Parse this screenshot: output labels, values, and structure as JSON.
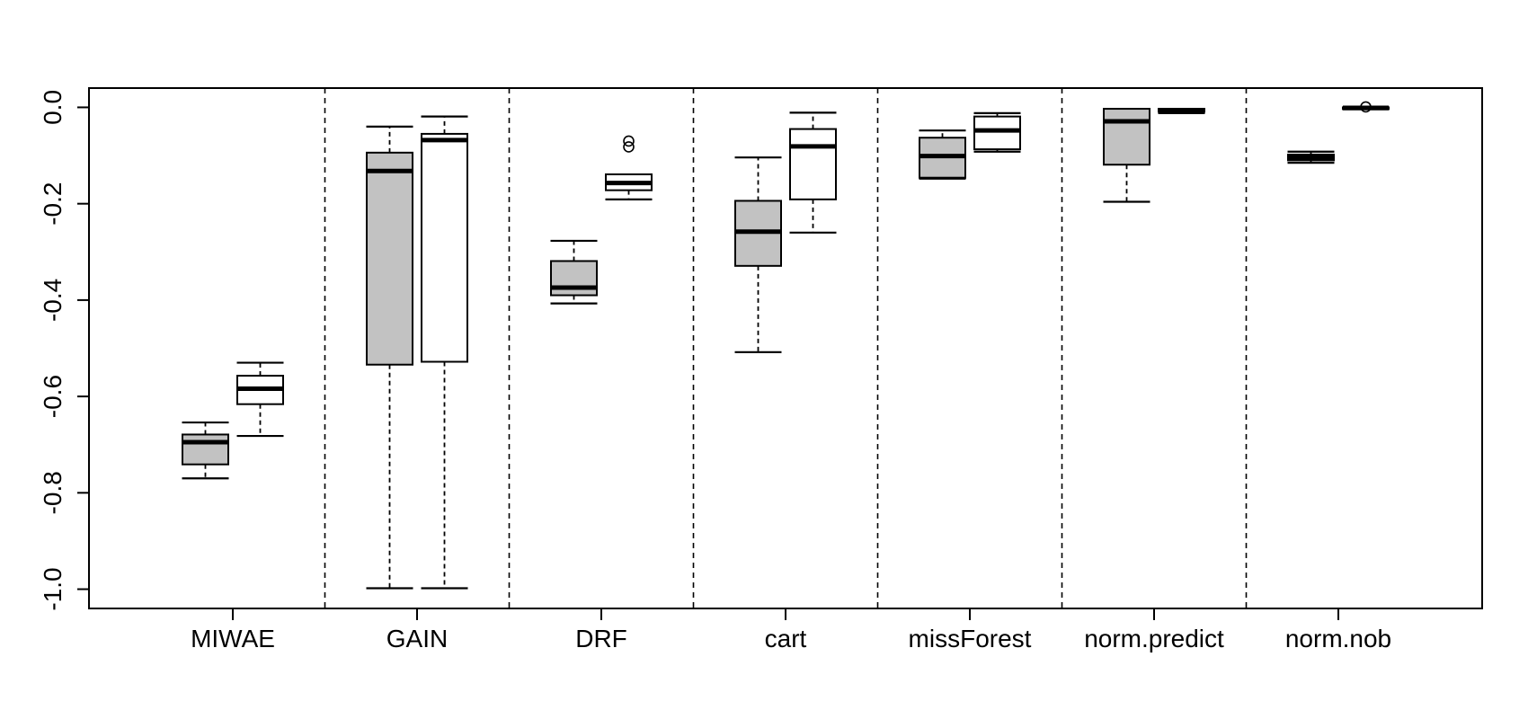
{
  "chart_data": {
    "type": "boxplot",
    "title": "",
    "xlabel": "",
    "ylabel": "",
    "categories": [
      "MIWAE",
      "GAIN",
      "DRF",
      "cart",
      "missForest",
      "norm.predict",
      "norm.nob"
    ],
    "y_tick_labels": [
      "0.0",
      "-0.2",
      "-0.4",
      "-0.6",
      "-0.8",
      "-1.0"
    ],
    "y_tick_values": [
      0.0,
      -0.2,
      -0.4,
      -0.6,
      -0.8,
      -1.0
    ],
    "ylim": [
      -1.04,
      0.04
    ],
    "grid": false,
    "legend": false,
    "group_separators": "dashed vertical lines between category groups",
    "colors": {
      "box_gray_fill": "#c2c2c2",
      "box_white_fill": "#ffffff",
      "line": "#000000",
      "background": "#ffffff"
    },
    "series": [
      {
        "name": "gray-box",
        "fill": "#c2c2c2",
        "boxes": [
          {
            "category": "MIWAE",
            "low": -0.77,
            "q1": -0.741,
            "med": -0.695,
            "q3": -0.679,
            "high": -0.654,
            "outliers": []
          },
          {
            "category": "GAIN",
            "low": -0.998,
            "q1": -0.534,
            "med": -0.132,
            "q3": -0.094,
            "high": -0.04,
            "outliers": []
          },
          {
            "category": "DRF",
            "low": -0.407,
            "q1": -0.39,
            "med": -0.374,
            "q3": -0.319,
            "high": -0.277,
            "outliers": []
          },
          {
            "category": "cart",
            "low": -0.508,
            "q1": -0.329,
            "med": -0.258,
            "q3": -0.194,
            "high": -0.104,
            "outliers": []
          },
          {
            "category": "missForest",
            "low": -0.148,
            "q1": -0.146,
            "med": -0.101,
            "q3": -0.063,
            "high": -0.048,
            "outliers": []
          },
          {
            "category": "norm.predict",
            "low": -0.196,
            "q1": -0.119,
            "med": -0.029,
            "q3": -0.003,
            "high": -0.003,
            "outliers": []
          },
          {
            "category": "norm.nob",
            "low": -0.115,
            "q1": -0.11,
            "med": -0.104,
            "q3": -0.098,
            "high": -0.092,
            "outliers": []
          }
        ]
      },
      {
        "name": "white-box",
        "fill": "#ffffff",
        "boxes": [
          {
            "category": "MIWAE",
            "low": -0.682,
            "q1": -0.616,
            "med": -0.584,
            "q3": -0.557,
            "high": -0.53,
            "outliers": []
          },
          {
            "category": "GAIN",
            "low": -0.998,
            "q1": -0.528,
            "med": -0.068,
            "q3": -0.055,
            "high": -0.019,
            "outliers": []
          },
          {
            "category": "DRF",
            "low": -0.191,
            "q1": -0.172,
            "med": -0.157,
            "q3": -0.139,
            "high": -0.139,
            "outliers": [
              -0.07,
              -0.082
            ]
          },
          {
            "category": "cart",
            "low": -0.26,
            "q1": -0.191,
            "med": -0.081,
            "q3": -0.045,
            "high": -0.011,
            "outliers": []
          },
          {
            "category": "missForest",
            "low": -0.092,
            "q1": -0.087,
            "med": -0.048,
            "q3": -0.019,
            "high": -0.012,
            "outliers": []
          },
          {
            "category": "norm.predict",
            "low": -0.012,
            "q1": -0.009,
            "med": -0.006,
            "q3": -0.003,
            "high": -0.002,
            "outliers": []
          },
          {
            "category": "norm.nob",
            "low": -0.004,
            "q1": -0.002,
            "med": -0.001,
            "q3": 0.0,
            "high": 0.0,
            "outliers": [
              0.001
            ]
          }
        ]
      }
    ]
  }
}
